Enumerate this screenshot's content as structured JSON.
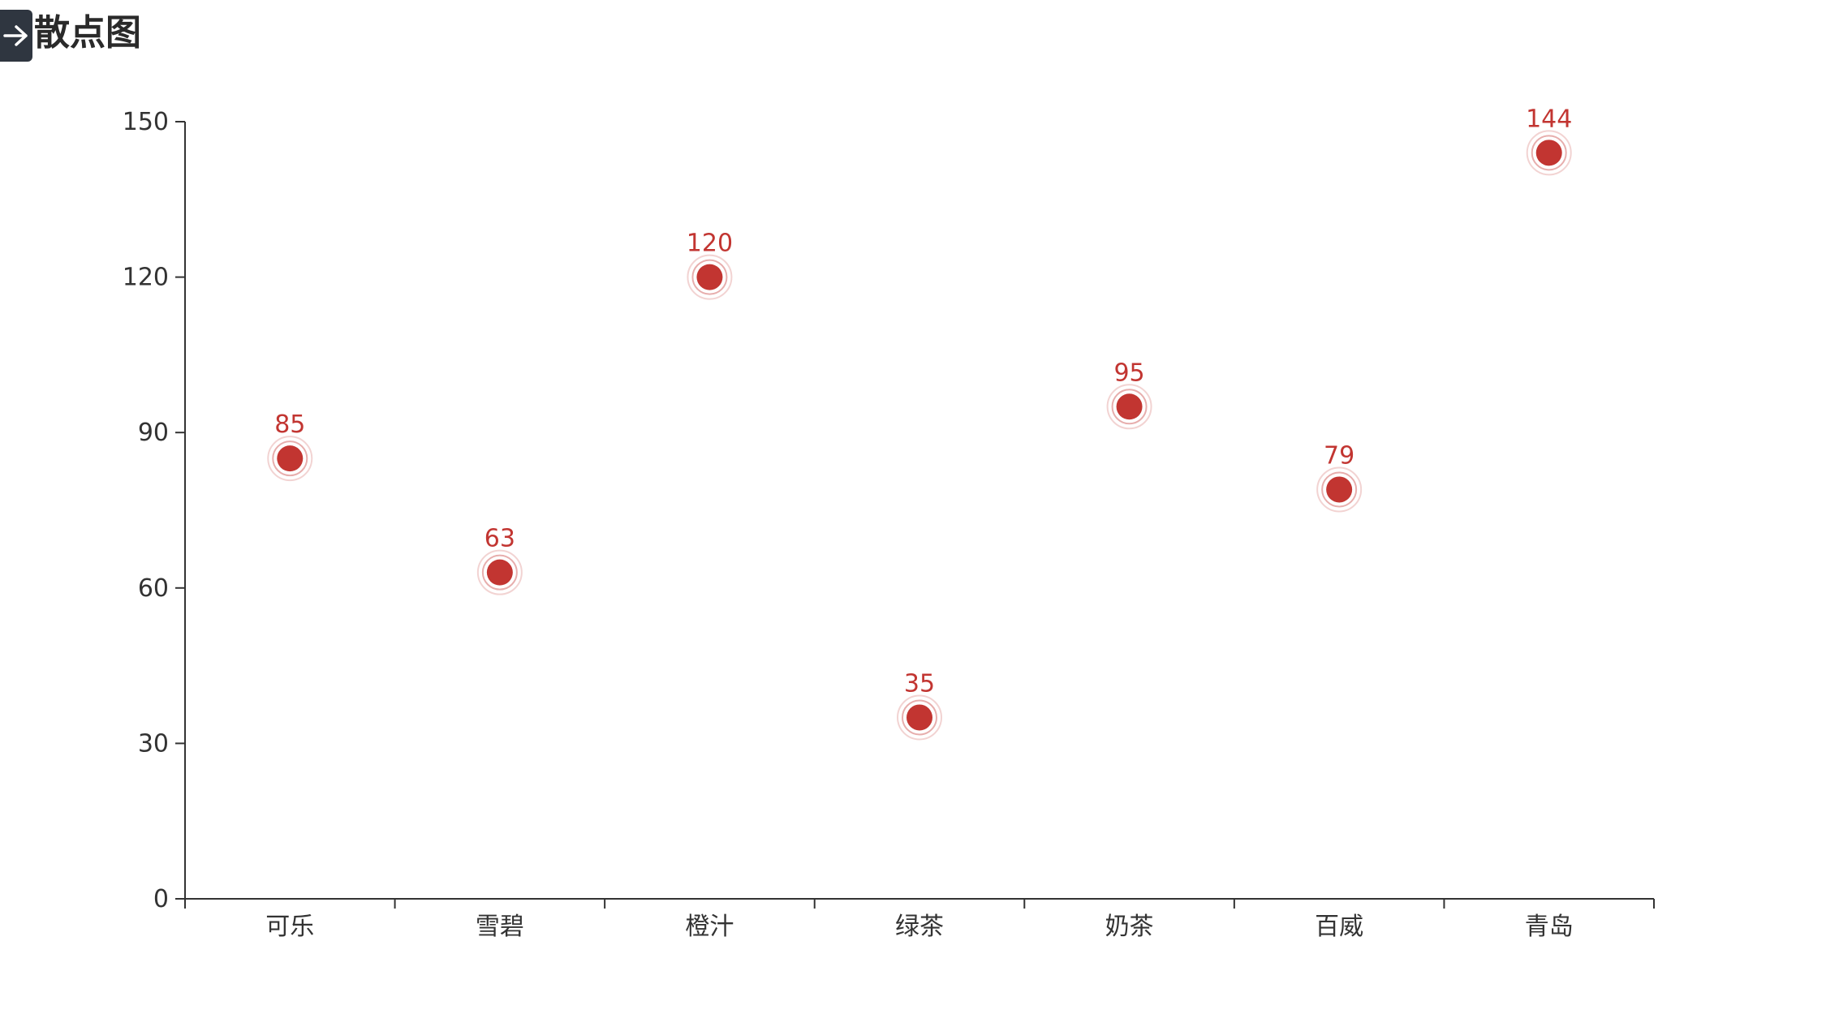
{
  "header": {
    "title": "散点图",
    "nav_icon": "arrow-right-icon"
  },
  "colors": {
    "point": "#c23531",
    "ripple": "#c23531",
    "axis": "#333333",
    "nav_background": "#2f3640"
  },
  "chart_data": {
    "type": "scatter",
    "title": "散点图",
    "xlabel": "",
    "ylabel": "",
    "categories": [
      "可乐",
      "雪碧",
      "橙汁",
      "绿茶",
      "奶茶",
      "百威",
      "青岛"
    ],
    "series": [
      {
        "values": [
          85,
          63,
          120,
          35,
          95,
          79,
          144
        ],
        "effect": "ripple",
        "show_labels": true
      }
    ],
    "ylim": [
      0,
      150
    ],
    "yticks": [
      0,
      30,
      60,
      90,
      120,
      150
    ],
    "grid": false,
    "legend": "none"
  }
}
